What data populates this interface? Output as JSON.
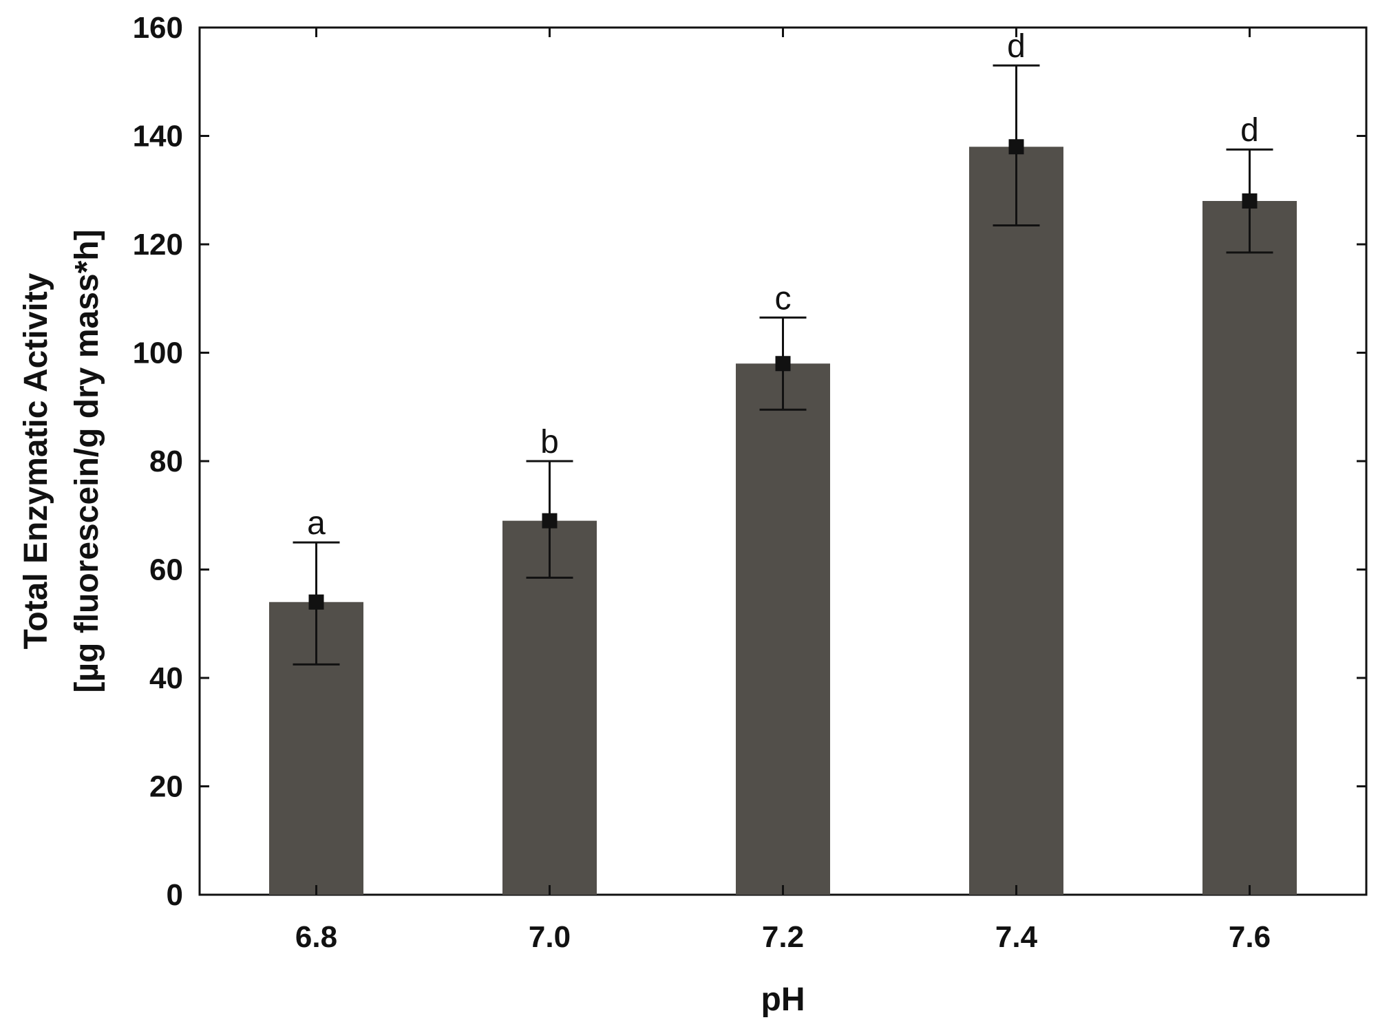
{
  "chart_data": {
    "type": "bar",
    "categories": [
      "6.8",
      "7.0",
      "7.2",
      "7.4",
      "7.6"
    ],
    "values": [
      54,
      69,
      98,
      138,
      128
    ],
    "error_upper": [
      65,
      80,
      106.5,
      153,
      137.5
    ],
    "error_lower": [
      42.5,
      58.5,
      89.5,
      123.5,
      118.5
    ],
    "significance_labels": [
      "a",
      "b",
      "c",
      "d",
      "d"
    ],
    "title": "",
    "xlabel": "pH",
    "ylabel": "Total Enzymatic Activity",
    "ylabel_line2": "[µg fluorescein/g dry mass*h]",
    "ylim": [
      0,
      160
    ],
    "yticks": [
      0,
      20,
      40,
      60,
      80,
      100,
      120,
      140,
      160
    ],
    "grid": false,
    "legend": "none",
    "colors": {
      "bar": "#524f4a",
      "axis": "#111111",
      "marker": "#111111"
    }
  }
}
